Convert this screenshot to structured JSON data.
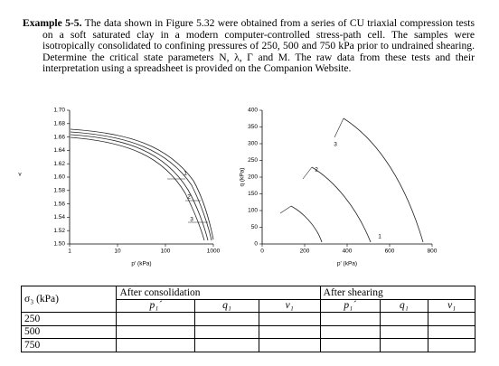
{
  "text": {
    "label": "Example 5-5.",
    "body": "The data shown in Figure 5.32 were obtained from a series of CU triaxial compression tests on a soft saturated clay in a modern computer-controlled stress-path cell. The samples were isotropically consolidated to confining pressures of 250, 500 and 750 kPa prior to undrained shearing. Determine the critical state parameters N, λ, Γ and M. The raw data from these tests and their interpretation using a spreadsheet is provided on the Companion Website."
  },
  "figure": [
    {
      "ylabel": "v",
      "xlabel": "p′ (kPa)",
      "log_x": true,
      "xlim": [
        1,
        1000
      ],
      "xticks": [
        1,
        10,
        100,
        1000
      ],
      "ylim": [
        1.5,
        1.7
      ],
      "yticks": [
        {
          "value": 1.5,
          "label": "1.50"
        },
        {
          "value": 1.52,
          "label": "1.52"
        },
        {
          "value": 1.54,
          "label": "1.54"
        },
        {
          "value": 1.56,
          "label": "1.56"
        },
        {
          "value": 1.58,
          "label": "1.58"
        },
        {
          "value": 1.6,
          "label": "1.60"
        },
        {
          "value": 1.62,
          "label": "1.62"
        },
        {
          "value": 1.64,
          "label": "1.64"
        },
        {
          "value": 1.66,
          "label": "1.66"
        },
        {
          "value": 1.68,
          "label": "1.68"
        },
        {
          "value": 1.7,
          "label": "1.70"
        }
      ],
      "annotations": [
        "1",
        "2",
        "3"
      ]
    },
    {
      "ylabel": "q (kPa)",
      "xlabel": "p′ (kPa)",
      "log_x": false,
      "xlim": [
        0,
        800
      ],
      "xticks": [
        0,
        200,
        400,
        600,
        800
      ],
      "ylim": [
        0,
        400
      ],
      "yticks": [
        0,
        50,
        100,
        150,
        200,
        250,
        300,
        350,
        400
      ],
      "annotations": [
        "1",
        "2",
        "3"
      ]
    }
  ],
  "table": {
    "header": [
      "σ₃ (kPa)",
      "After consolidation",
      "After shearing"
    ],
    "subheader": [
      "p₁´",
      "q₁",
      "v₁",
      "p₁´",
      "q₁",
      "v₁"
    ],
    "rows": [
      "250",
      "500",
      "750"
    ]
  }
}
